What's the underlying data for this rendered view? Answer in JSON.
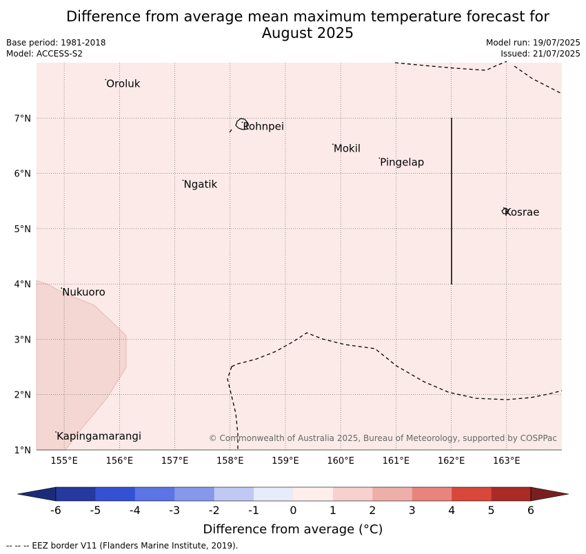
{
  "title": {
    "line1": "Difference from average mean maximum temperature forecast for",
    "line2": "August 2025"
  },
  "meta_left": {
    "base_period": "Base period: 1981-2018",
    "model": "Model: ACCESS-S2"
  },
  "meta_right": {
    "model_run": "Model run: 19/07/2025",
    "issued": "Issued: 21/07/2025"
  },
  "map": {
    "lon_range": [
      154.5,
      164.0
    ],
    "lat_range": [
      1.0,
      8.0
    ],
    "background_color": "#fbeae8",
    "anomaly_region_color": "#f4d6d2",
    "lon_ticks": [
      {
        "value": 155,
        "label": "155°E"
      },
      {
        "value": 156,
        "label": "156°E"
      },
      {
        "value": 157,
        "label": "157°E"
      },
      {
        "value": 158,
        "label": "158°E"
      },
      {
        "value": 159,
        "label": "159°E"
      },
      {
        "value": 160,
        "label": "160°E"
      },
      {
        "value": 161,
        "label": "161°E"
      },
      {
        "value": 162,
        "label": "162°E"
      },
      {
        "value": 163,
        "label": "163°E"
      }
    ],
    "lat_ticks": [
      {
        "value": 7,
        "label": "7°N"
      },
      {
        "value": 6,
        "label": "6°N"
      },
      {
        "value": 5,
        "label": "5°N"
      },
      {
        "value": 4,
        "label": "4°N"
      },
      {
        "value": 3,
        "label": "3°N"
      },
      {
        "value": 2,
        "label": "2°N"
      },
      {
        "value": 1,
        "label": "1°N"
      }
    ],
    "places": [
      {
        "name": "Oroluk",
        "lon": 155.75,
        "lat": 7.62
      },
      {
        "name": "Pohnpei",
        "lon": 158.22,
        "lat": 6.85
      },
      {
        "name": "Mokil",
        "lon": 159.86,
        "lat": 6.45
      },
      {
        "name": "Pingelap",
        "lon": 160.7,
        "lat": 6.2
      },
      {
        "name": "Ngatik",
        "lon": 157.15,
        "lat": 5.8
      },
      {
        "name": "Kosrae",
        "lon": 162.95,
        "lat": 5.3
      },
      {
        "name": "Nukuoro",
        "lon": 154.95,
        "lat": 3.85
      },
      {
        "name": "Kapingamarangi",
        "lon": 154.85,
        "lat": 1.25
      }
    ],
    "copyright": "© Commonwealth of Australia 2025, Bureau of Meteorology, supported by COSPPac"
  },
  "colorbar": {
    "label": "Difference from average (°C)",
    "tick_labels": [
      "-6",
      "-5",
      "-4",
      "-3",
      "-2",
      "-1",
      "0",
      "1",
      "2",
      "3",
      "4",
      "5",
      "6"
    ],
    "colors": [
      "#26399f",
      "#3451d6",
      "#5b75e4",
      "#8798ec",
      "#c0c8f4",
      "#e8ebfa",
      "#fdeeec",
      "#f6d1cd",
      "#efafa9",
      "#e8847c",
      "#d9473b",
      "#aa2a26"
    ],
    "under_color": "#1c2c78",
    "over_color": "#7a1f1f"
  },
  "footnote": "--  --  -- EEZ border V11 (Flanders Marine Institute, 2019)."
}
